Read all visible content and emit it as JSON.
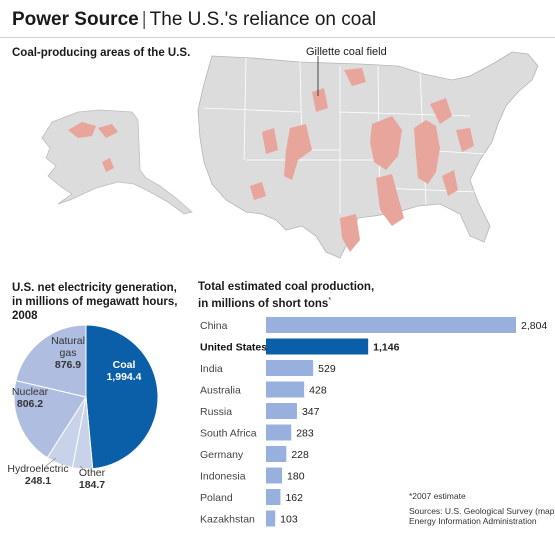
{
  "header": {
    "title_strong": "Power Source",
    "separator": "|",
    "title_rest": "The U.S.'s reliance on coal"
  },
  "map": {
    "title": "Coal-producing areas of the U.S.",
    "annotation": "Gillette coal field",
    "coal_color": "#e8a59b",
    "land_color": "#dcdcdc"
  },
  "pie": {
    "title_lines": [
      "U.S. net electricity generation,",
      "in millions of megawatt hours,",
      "2008"
    ]
  },
  "bars": {
    "title_lines": [
      "Total estimated coal production,",
      "in millions of short tons"
    ],
    "title_marker": "*"
  },
  "notes": {
    "estimate": "*2007 estimate",
    "sources": [
      "Sources: U.S. Geological Survey (map);",
      "Energy Information Administration"
    ]
  },
  "chart_data": [
    {
      "type": "pie",
      "title": "U.S. net electricity generation, in millions of megawatt hours, 2008",
      "slices": [
        {
          "label": "Coal",
          "value": 1994.4,
          "display": "1,994.4",
          "color": "#0b5ea8"
        },
        {
          "label": "Other",
          "value": 184.7,
          "display": "184.7",
          "color": "#c8d3ea"
        },
        {
          "label": "Hydroelectric",
          "value": 248.1,
          "display": "248.1",
          "color": "#c8d3ea"
        },
        {
          "label": "Nuclear",
          "value": 806.2,
          "display": "806.2",
          "color": "#aebde0"
        },
        {
          "label": "Natural gas",
          "value": 876.9,
          "display": "876.9",
          "color": "#aebde0"
        }
      ]
    },
    {
      "type": "bar",
      "orientation": "horizontal",
      "title": "Total estimated coal production, in millions of short tons",
      "categories": [
        "China",
        "United States",
        "India",
        "Australia",
        "Russia",
        "South Africa",
        "Germany",
        "Indonesia",
        "Poland",
        "Kazakhstan"
      ],
      "values": [
        2804,
        1146,
        529,
        428,
        347,
        283,
        228,
        180,
        162,
        103
      ],
      "display": [
        "2,804",
        "1,146",
        "529",
        "428",
        "347",
        "283",
        "228",
        "180",
        "162",
        "103"
      ],
      "highlight": "United States",
      "bar_color": "#97b0dd",
      "highlight_color": "#0b5ea8"
    }
  ]
}
